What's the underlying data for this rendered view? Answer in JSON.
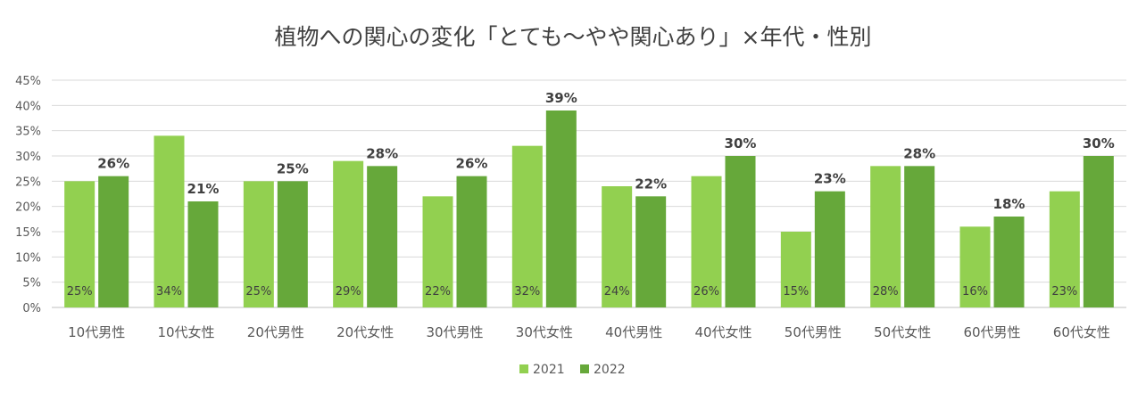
{
  "chart_data": {
    "type": "bar",
    "title": "植物への関心の変化「とても～やや関心あり」×年代・性別",
    "categories": [
      "10代男性",
      "10代女性",
      "20代男性",
      "20代女性",
      "30代男性",
      "30代女性",
      "40代男性",
      "40代女性",
      "50代男性",
      "50代女性",
      "60代男性",
      "60代女性"
    ],
    "series": [
      {
        "name": "2021",
        "color": "#92d050",
        "values": [
          25,
          34,
          25,
          29,
          22,
          32,
          24,
          26,
          15,
          28,
          16,
          23
        ],
        "labels": [
          "25%",
          "34%",
          "25%",
          "29%",
          "22%",
          "32%",
          "24%",
          "26%",
          "15%",
          "28%",
          "16%",
          "23%"
        ]
      },
      {
        "name": "2022",
        "color": "#66a83a",
        "values": [
          26,
          21,
          25,
          28,
          26,
          39,
          22,
          30,
          23,
          28,
          18,
          30
        ],
        "labels": [
          "26%",
          "21%",
          "25%",
          "28%",
          "26%",
          "39%",
          "22%",
          "30%",
          "23%",
          "28%",
          "18%",
          "30%"
        ]
      }
    ],
    "ylim": [
      0,
      45
    ],
    "yticks": [
      "0%",
      "5%",
      "10%",
      "15%",
      "20%",
      "25%",
      "30%",
      "35%",
      "40%",
      "45%"
    ],
    "grid": true,
    "legend": "bottom-center",
    "xlabel": "",
    "ylabel": ""
  }
}
